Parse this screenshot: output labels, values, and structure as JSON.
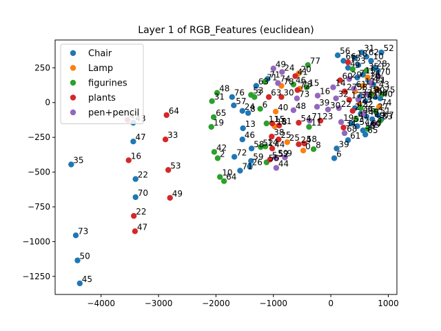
{
  "chart_data": {
    "type": "scatter",
    "title": "Layer 1 of RGB_Features (euclidean)",
    "xlabel": "",
    "ylabel": "",
    "xlim": [
      -4800,
      1150
    ],
    "ylim": [
      -1380,
      450
    ],
    "xticks": [
      -4000,
      -3000,
      -2000,
      -1000,
      0,
      1000
    ],
    "yticks": [
      250,
      0,
      -250,
      -500,
      -750,
      -1000,
      -1250
    ],
    "grid": false,
    "legend_position": "top-left",
    "series": [
      {
        "name": "Chair",
        "color": "#1f77b4",
        "points": [
          {
            "x": -4520,
            "y": -445,
            "label": "35"
          },
          {
            "x": -4440,
            "y": -955,
            "label": "73"
          },
          {
            "x": -4410,
            "y": -1135,
            "label": "50"
          },
          {
            "x": -4370,
            "y": -1300,
            "label": "45"
          },
          {
            "x": -3440,
            "y": -145,
            "label": "43"
          },
          {
            "x": -3440,
            "y": -280,
            "label": "47"
          },
          {
            "x": -3400,
            "y": -550,
            "label": "22"
          },
          {
            "x": -3400,
            "y": -680,
            "label": "70"
          },
          {
            "x": -1580,
            "y": -490,
            "label": "71"
          },
          {
            "x": -1680,
            "y": -390,
            "label": "72"
          },
          {
            "x": -1540,
            "y": -265,
            "label": "46"
          },
          {
            "x": -1530,
            "y": -185,
            "label": "13"
          },
          {
            "x": -1410,
            "y": -460,
            "label": "26"
          },
          {
            "x": -1390,
            "y": -420,
            "label": "59"
          },
          {
            "x": -1380,
            "y": -330,
            "label": "58"
          },
          {
            "x": -1300,
            "y": 120,
            "label": "63"
          },
          {
            "x": -1720,
            "y": 40,
            "label": "76"
          },
          {
            "x": -1690,
            "y": -20,
            "label": "57"
          },
          {
            "x": -1440,
            "y": -75,
            "label": "8"
          },
          {
            "x": -1540,
            "y": -60,
            "label": "24"
          },
          {
            "x": -1100,
            "y": 170,
            "label": "71"
          },
          {
            "x": 60,
            "y": -400,
            "label": "6"
          },
          {
            "x": 100,
            "y": -330,
            "label": "39"
          },
          {
            "x": 120,
            "y": 340,
            "label": "56"
          },
          {
            "x": 220,
            "y": 300,
            "label": "66"
          },
          {
            "x": 300,
            "y": 250,
            "label": "4"
          },
          {
            "x": 420,
            "y": 320,
            "label": "18"
          },
          {
            "x": 480,
            "y": 270,
            "label": "3"
          },
          {
            "x": 540,
            "y": 360,
            "label": "31"
          },
          {
            "x": 620,
            "y": 330,
            "label": "62"
          },
          {
            "x": 700,
            "y": 300,
            "label": "10"
          },
          {
            "x": 760,
            "y": 250,
            "label": "28"
          },
          {
            "x": 820,
            "y": 230,
            "label": "12"
          },
          {
            "x": 880,
            "y": 360,
            "label": "52"
          },
          {
            "x": 460,
            "y": 180,
            "label": "7"
          },
          {
            "x": 560,
            "y": 200,
            "label": "15"
          },
          {
            "x": 650,
            "y": 160,
            "label": "20"
          },
          {
            "x": 740,
            "y": 130,
            "label": "21"
          },
          {
            "x": 500,
            "y": 40,
            "label": "33"
          },
          {
            "x": 600,
            "y": 10,
            "label": "34"
          },
          {
            "x": 680,
            "y": 50,
            "label": "36"
          },
          {
            "x": 770,
            "y": 40,
            "label": "38"
          },
          {
            "x": 860,
            "y": 30,
            "label": "40"
          },
          {
            "x": 420,
            "y": -40,
            "label": "42"
          },
          {
            "x": 520,
            "y": -80,
            "label": "44"
          },
          {
            "x": 620,
            "y": -100,
            "label": "48"
          },
          {
            "x": 720,
            "y": -120,
            "label": "49"
          },
          {
            "x": 820,
            "y": -90,
            "label": "51"
          },
          {
            "x": 360,
            "y": -150,
            "label": "53"
          },
          {
            "x": 460,
            "y": -170,
            "label": "54"
          },
          {
            "x": 560,
            "y": -200,
            "label": "55"
          },
          {
            "x": 660,
            "y": -180,
            "label": "60"
          },
          {
            "x": 300,
            "y": -270,
            "label": "61"
          },
          {
            "x": 600,
            "y": -230,
            "label": "65"
          },
          {
            "x": 880,
            "y": -120,
            "label": "67"
          }
        ]
      },
      {
        "name": "Lamp",
        "color": "#ff7f0e",
        "points": [
          {
            "x": -960,
            "y": -65,
            "label": "40"
          },
          {
            "x": -980,
            "y": -170,
            "label": "18"
          },
          {
            "x": -760,
            "y": -285,
            "label": "25"
          },
          {
            "x": -480,
            "y": -345,
            "label": "0"
          },
          {
            "x": -560,
            "y": 210,
            "label": "20"
          },
          {
            "x": -860,
            "y": 120,
            "label": "78"
          },
          {
            "x": -540,
            "y": 100,
            "label": "73"
          },
          {
            "x": 560,
            "y": 120,
            "label": "11"
          },
          {
            "x": 640,
            "y": 180,
            "label": "14"
          },
          {
            "x": 720,
            "y": 60,
            "label": "30"
          },
          {
            "x": 500,
            "y": -10,
            "label": "23"
          },
          {
            "x": 800,
            "y": 100,
            "label": "43"
          },
          {
            "x": 840,
            "y": -30,
            "label": "74"
          },
          {
            "x": 420,
            "y": 80,
            "label": "58"
          }
        ]
      },
      {
        "name": "figurines",
        "color": "#2ca02c",
        "points": [
          {
            "x": -1980,
            "y": 70,
            "label": "48"
          },
          {
            "x": -2070,
            "y": 10,
            "label": "31"
          },
          {
            "x": -2040,
            "y": -105,
            "label": "65"
          },
          {
            "x": -2080,
            "y": -175,
            "label": "19"
          },
          {
            "x": -2030,
            "y": -355,
            "label": "42"
          },
          {
            "x": -1970,
            "y": -400,
            "label": "2"
          },
          {
            "x": -1930,
            "y": -535,
            "label": "10"
          },
          {
            "x": -1860,
            "y": -565,
            "label": "64"
          },
          {
            "x": -1390,
            "y": 55,
            "label": "53"
          },
          {
            "x": -1330,
            "y": 40,
            "label": "3"
          },
          {
            "x": -1230,
            "y": -45,
            "label": "6"
          },
          {
            "x": -1220,
            "y": -320,
            "label": "52"
          },
          {
            "x": -1120,
            "y": -430,
            "label": "56"
          },
          {
            "x": -1120,
            "y": -150,
            "label": "11"
          },
          {
            "x": -1150,
            "y": 150,
            "label": "71"
          },
          {
            "x": -400,
            "y": 270,
            "label": "77"
          },
          {
            "x": -650,
            "y": 130,
            "label": "46"
          },
          {
            "x": -420,
            "y": 110,
            "label": "15"
          },
          {
            "x": -380,
            "y": -175,
            "label": "11"
          },
          {
            "x": -300,
            "y": -335,
            "label": "8"
          },
          {
            "x": -1140,
            "y": -315,
            "label": "14"
          },
          {
            "x": 380,
            "y": 240,
            "label": "9"
          },
          {
            "x": 620,
            "y": 230,
            "label": "35"
          },
          {
            "x": 700,
            "y": 60,
            "label": "5"
          },
          {
            "x": 780,
            "y": -60,
            "label": "27"
          },
          {
            "x": 860,
            "y": -130,
            "label": "63"
          },
          {
            "x": 440,
            "y": -120,
            "label": "41"
          },
          {
            "x": 520,
            "y": -40,
            "label": "32"
          },
          {
            "x": 640,
            "y": -190,
            "label": "69"
          },
          {
            "x": 900,
            "y": 60,
            "label": "75"
          }
        ]
      },
      {
        "name": "plants",
        "color": "#d62728",
        "points": [
          {
            "x": -3540,
            "y": -125,
            "label": "43"
          },
          {
            "x": -3520,
            "y": -415,
            "label": "16"
          },
          {
            "x": -3430,
            "y": -815,
            "label": "22"
          },
          {
            "x": -3410,
            "y": -925,
            "label": "47"
          },
          {
            "x": -2860,
            "y": -90,
            "label": "64"
          },
          {
            "x": -2880,
            "y": -265,
            "label": "33"
          },
          {
            "x": -2830,
            "y": -485,
            "label": "53"
          },
          {
            "x": -2800,
            "y": -685,
            "label": "49"
          },
          {
            "x": -1080,
            "y": 40,
            "label": "63"
          },
          {
            "x": -860,
            "y": 40,
            "label": "30"
          },
          {
            "x": -1020,
            "y": -150,
            "label": "15"
          },
          {
            "x": -1030,
            "y": -245,
            "label": "38"
          },
          {
            "x": -1020,
            "y": -330,
            "label": "44"
          },
          {
            "x": -950,
            "y": -400,
            "label": "52"
          },
          {
            "x": -1060,
            "y": -410,
            "label": "5"
          },
          {
            "x": -560,
            "y": -145,
            "label": "54"
          },
          {
            "x": -460,
            "y": -295,
            "label": "58"
          },
          {
            "x": -560,
            "y": -300,
            "label": "24"
          },
          {
            "x": -580,
            "y": 90,
            "label": "72"
          },
          {
            "x": -620,
            "y": 190,
            "label": "41"
          },
          {
            "x": -910,
            "y": -265,
            "label": "25"
          },
          {
            "x": -900,
            "y": -165,
            "label": "51"
          },
          {
            "x": -180,
            "y": -130,
            "label": "23"
          },
          {
            "x": 160,
            "y": 160,
            "label": "60"
          },
          {
            "x": 240,
            "y": 80,
            "label": "27"
          },
          {
            "x": 320,
            "y": 20,
            "label": "17"
          },
          {
            "x": 380,
            "y": -60,
            "label": "2"
          },
          {
            "x": 220,
            "y": -180,
            "label": "34"
          },
          {
            "x": 300,
            "y": 290,
            "label": "75"
          }
        ]
      },
      {
        "name": "pen+pencil",
        "color": "#9467bd",
        "points": [
          {
            "x": -1000,
            "y": 245,
            "label": "49"
          },
          {
            "x": -850,
            "y": 220,
            "label": "24"
          },
          {
            "x": -920,
            "y": 140,
            "label": "74"
          },
          {
            "x": -590,
            "y": 30,
            "label": "73"
          },
          {
            "x": -650,
            "y": -55,
            "label": "48"
          },
          {
            "x": -230,
            "y": 50,
            "label": "16"
          },
          {
            "x": -240,
            "y": -30,
            "label": "39"
          },
          {
            "x": -370,
            "y": -130,
            "label": "71"
          },
          {
            "x": -960,
            "y": -395,
            "label": "59"
          },
          {
            "x": -950,
            "y": -470,
            "label": "44"
          },
          {
            "x": -800,
            "y": -395,
            "label": "9"
          },
          {
            "x": -50,
            "y": -50,
            "label": "30"
          },
          {
            "x": 40,
            "y": 110,
            "label": "14"
          },
          {
            "x": 90,
            "y": 30,
            "label": "32"
          },
          {
            "x": 140,
            "y": -40,
            "label": "22"
          },
          {
            "x": 180,
            "y": -140,
            "label": "19"
          },
          {
            "x": 240,
            "y": -220,
            "label": "68"
          },
          {
            "x": 320,
            "y": 170,
            "label": "29"
          },
          {
            "x": 400,
            "y": 100,
            "label": "61"
          },
          {
            "x": 480,
            "y": 20,
            "label": "57"
          },
          {
            "x": 560,
            "y": -80,
            "label": "36"
          },
          {
            "x": 620,
            "y": 60,
            "label": "12"
          },
          {
            "x": 700,
            "y": 140,
            "label": "45"
          },
          {
            "x": 760,
            "y": -150,
            "label": "3"
          },
          {
            "x": 820,
            "y": 190,
            "label": "70"
          }
        ]
      }
    ]
  }
}
